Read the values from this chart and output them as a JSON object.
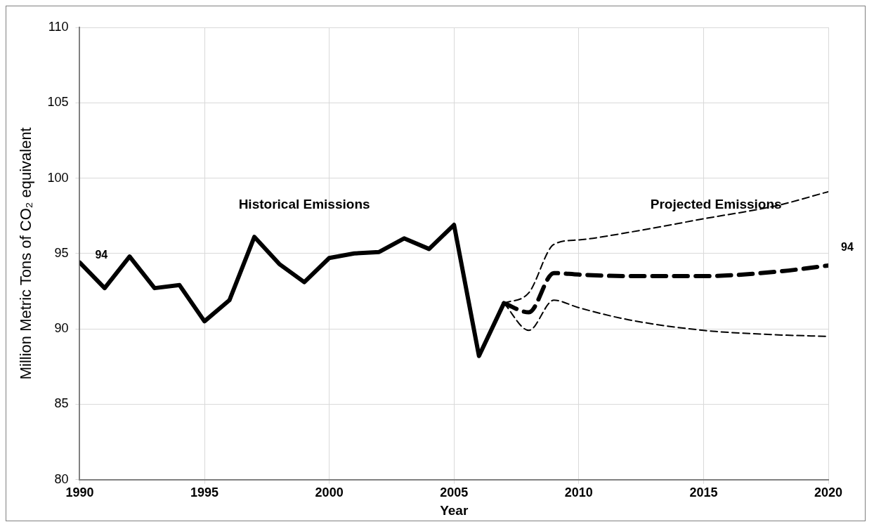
{
  "chart_data": {
    "type": "line",
    "xlabel": "Year",
    "ylabel": "Million Metric Tons of CO₂ equivalent",
    "xlim": [
      1990,
      2020
    ],
    "xticks": [
      1990,
      1995,
      2000,
      2005,
      2010,
      2015,
      2020
    ],
    "ylim": [
      80,
      110
    ],
    "yticks": [
      80,
      85,
      90,
      95,
      100,
      105,
      110
    ],
    "grid": true,
    "marker": "none",
    "series": [
      {
        "color": "#000000",
        "line_style": "solid",
        "x": [
          1990,
          1991,
          1992,
          1993,
          1994,
          1995,
          1996,
          1997,
          1998,
          1999,
          2000,
          2001,
          2002,
          2003,
          2004,
          2005,
          2006,
          2007
        ],
        "values": [
          94.4,
          92.7,
          94.8,
          92.7,
          92.9,
          90.5,
          91.9,
          96.1,
          94.3,
          93.1,
          94.7,
          95.0,
          95.1,
          96.0,
          95.3,
          96.9,
          88.2,
          91.7
        ]
      },
      {
        "color": "#000000",
        "line_style": "dashed",
        "x": [
          2007,
          2008,
          2009,
          2010,
          2012,
          2015,
          2018,
          2020
        ],
        "values": [
          91.7,
          91.1,
          93.7,
          93.6,
          93.5,
          93.5,
          93.8,
          94.2
        ]
      },
      {
        "color": "#000000",
        "line_style": "dashed",
        "x": [
          2007,
          2008,
          2009,
          2010,
          2012,
          2015,
          2018,
          2020
        ],
        "values": [
          91.7,
          92.4,
          95.6,
          95.9,
          96.4,
          97.3,
          98.2,
          99.1
        ]
      },
      {
        "color": "#000000",
        "line_style": "dashed",
        "x": [
          2007,
          2008,
          2009,
          2010,
          2012,
          2015,
          2018,
          2020
        ],
        "values": [
          91.7,
          89.9,
          91.9,
          91.4,
          90.6,
          89.9,
          89.6,
          89.5
        ]
      }
    ],
    "annotations": [
      "Historical Emissions",
      "Projected Emissions",
      {
        "text": "94",
        "x": 1990,
        "y": 94.4
      },
      {
        "text": "94",
        "x": 2020,
        "y": 94.2
      }
    ]
  }
}
